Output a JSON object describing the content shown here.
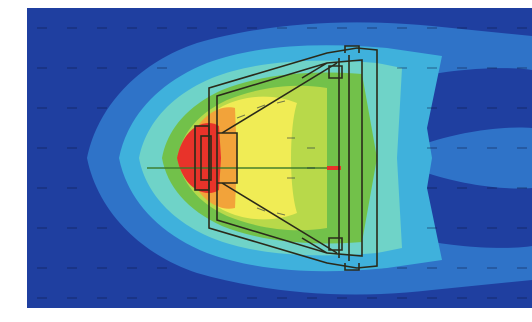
{
  "figure": {
    "icons": {
      "field": "thermal-field-icon",
      "speaker": "loudspeaker-cross-section-icon",
      "vectors": "velocity-vector-icon"
    },
    "colors": {
      "background": "#ffffff",
      "cold": "#1f3fa0",
      "cool": "#2f73c8",
      "mild": "#3fb1dc",
      "teal": "#6fd3c8",
      "warm": "#72c14a",
      "lime": "#b8d94a",
      "yellow": "#f0ec55",
      "orange": "#f2a33a",
      "hot": "#e8332a",
      "outline": "#2a2a1a"
    }
  }
}
